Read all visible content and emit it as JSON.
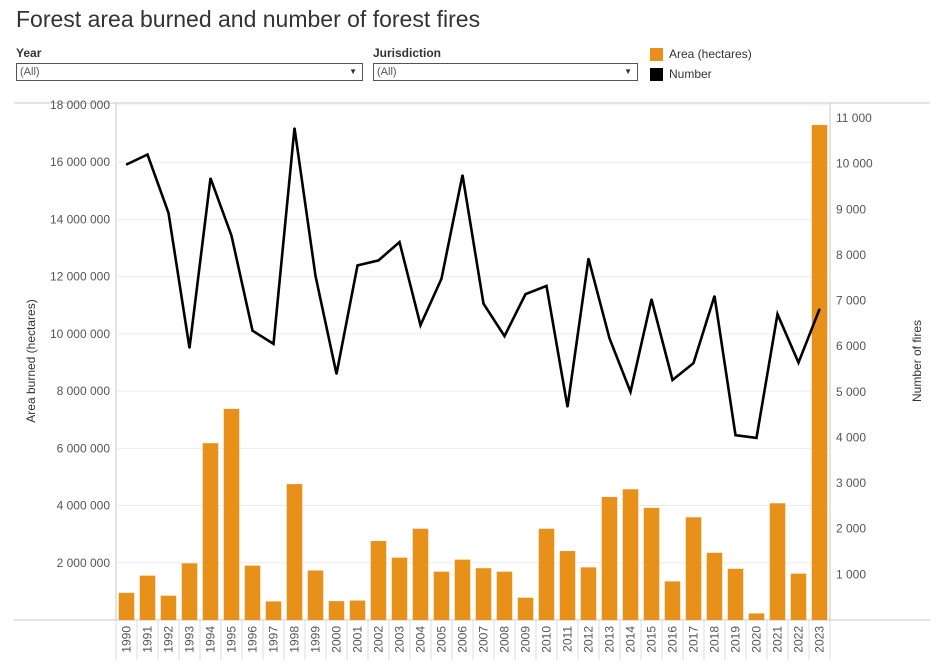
{
  "title": "Forest area burned and number of forest fires",
  "filters": {
    "year": {
      "label": "Year",
      "value": "(All)"
    },
    "jurisdiction": {
      "label": "Jurisdiction",
      "value": "(All)"
    }
  },
  "legend": [
    {
      "label": "Area (hectares)",
      "color": "#E8911A"
    },
    {
      "label": "Number",
      "color": "#000000"
    }
  ],
  "chart_data": {
    "type": "bar",
    "categories": [
      "1990",
      "1991",
      "1992",
      "1993",
      "1994",
      "1995",
      "1996",
      "1997",
      "1998",
      "1999",
      "2000",
      "2001",
      "2002",
      "2003",
      "2004",
      "2005",
      "2006",
      "2007",
      "2008",
      "2009",
      "2010",
      "2011",
      "2012",
      "2013",
      "2014",
      "2015",
      "2016",
      "2017",
      "2018",
      "2019",
      "2020",
      "2021",
      "2022",
      "2023"
    ],
    "series": [
      {
        "name": "Area (hectares)",
        "type": "bar",
        "axis": "left",
        "color": "#E8911A",
        "values": [
          950000,
          1550000,
          850000,
          1980000,
          6180000,
          7380000,
          1900000,
          650000,
          4750000,
          1730000,
          660000,
          680000,
          2760000,
          2180000,
          3190000,
          1690000,
          2110000,
          1810000,
          1690000,
          780000,
          3190000,
          2410000,
          1840000,
          4300000,
          4570000,
          3920000,
          1350000,
          3590000,
          2350000,
          1790000,
          230000,
          4080000,
          1620000,
          17300000
        ]
      },
      {
        "name": "Number",
        "type": "line",
        "axis": "right",
        "color": "#000000",
        "values": [
          9980,
          10200,
          8920,
          5960,
          9680,
          8420,
          6340,
          6050,
          10780,
          7540,
          5390,
          7770,
          7880,
          8280,
          6460,
          7480,
          9750,
          6930,
          6220,
          7140,
          7320,
          4670,
          7920,
          6170,
          5000,
          7030,
          5260,
          5630,
          7100,
          4050,
          3990,
          6700,
          5640,
          6810
        ]
      }
    ],
    "y_left": {
      "label": "Area burned (hectares)",
      "min": 0,
      "max": 18000000,
      "ticks": [
        {
          "v": 2000000,
          "t": "2 000 000"
        },
        {
          "v": 4000000,
          "t": "4 000 000"
        },
        {
          "v": 6000000,
          "t": "6 000 000"
        },
        {
          "v": 8000000,
          "t": "8 000 000"
        },
        {
          "v": 10000000,
          "t": "10 000 000"
        },
        {
          "v": 12000000,
          "t": "12 000 000"
        },
        {
          "v": 14000000,
          "t": "14 000 000"
        },
        {
          "v": 16000000,
          "t": "16 000 000"
        },
        {
          "v": 18000000,
          "t": "18 000 000"
        }
      ]
    },
    "y_right": {
      "label": "Number of fires",
      "min": 0,
      "max": 11000,
      "ticks": [
        {
          "v": 1000,
          "t": "1 000"
        },
        {
          "v": 2000,
          "t": "2 000"
        },
        {
          "v": 3000,
          "t": "3 000"
        },
        {
          "v": 4000,
          "t": "4 000"
        },
        {
          "v": 5000,
          "t": "5 000"
        },
        {
          "v": 6000,
          "t": "6 000"
        },
        {
          "v": 7000,
          "t": "7 000"
        },
        {
          "v": 8000,
          "t": "8 000"
        },
        {
          "v": 9000,
          "t": "9 000"
        },
        {
          "v": 10000,
          "t": "10 000"
        },
        {
          "v": 11000,
          "t": "11 000"
        }
      ]
    },
    "grid": true
  }
}
